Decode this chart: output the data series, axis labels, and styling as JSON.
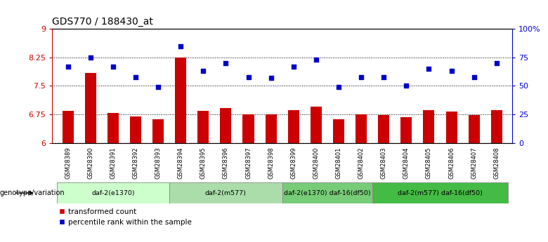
{
  "title": "GDS770 / 188430_at",
  "samples": [
    "GSM28389",
    "GSM28390",
    "GSM28391",
    "GSM28392",
    "GSM28393",
    "GSM28394",
    "GSM28395",
    "GSM28396",
    "GSM28397",
    "GSM28398",
    "GSM28399",
    "GSM28400",
    "GSM28401",
    "GSM28402",
    "GSM28403",
    "GSM28404",
    "GSM28405",
    "GSM28406",
    "GSM28407",
    "GSM28408"
  ],
  "bar_values": [
    6.85,
    7.85,
    6.78,
    6.7,
    6.62,
    8.25,
    6.85,
    6.92,
    6.75,
    6.75,
    6.87,
    6.95,
    6.62,
    6.75,
    6.73,
    6.68,
    6.87,
    6.82,
    6.73,
    6.87
  ],
  "dot_values_pct": [
    67,
    75,
    67,
    58,
    49,
    85,
    63,
    70,
    58,
    57,
    67,
    73,
    49,
    58,
    58,
    50,
    65,
    63,
    58,
    70
  ],
  "bar_color": "#cc0000",
  "dot_color": "#0000cc",
  "ylim_left": [
    6.0,
    9.0
  ],
  "ylim_right": [
    0,
    100
  ],
  "yticks_left": [
    6.0,
    6.75,
    7.5,
    8.25,
    9.0
  ],
  "ytick_labels_left": [
    "6",
    "6.75",
    "7.5",
    "8.25",
    "9"
  ],
  "yticks_right": [
    0,
    25,
    50,
    75,
    100
  ],
  "ytick_labels_right": [
    "0",
    "25",
    "50",
    "75",
    "100%"
  ],
  "hlines": [
    6.75,
    7.5,
    8.25
  ],
  "group_labels": [
    "daf-2(e1370)",
    "daf-2(m577)",
    "daf-2(e1370) daf-16(df50)",
    "daf-2(m577) daf-16(df50)"
  ],
  "group_ranges": [
    [
      0,
      4
    ],
    [
      5,
      9
    ],
    [
      10,
      13
    ],
    [
      14,
      19
    ]
  ],
  "group_colors": [
    "#ccffcc",
    "#aaddaa",
    "#77cc77",
    "#44bb44"
  ],
  "genotype_label": "genotype/variation",
  "legend_items": [
    "transformed count",
    "percentile rank within the sample"
  ],
  "bg_color": "#ffffff",
  "title_color": "#000000",
  "left_tick_color": "#cc0000",
  "right_tick_color": "#0000cc",
  "sample_cell_color": "#cccccc",
  "bar_baseline": 6.0
}
